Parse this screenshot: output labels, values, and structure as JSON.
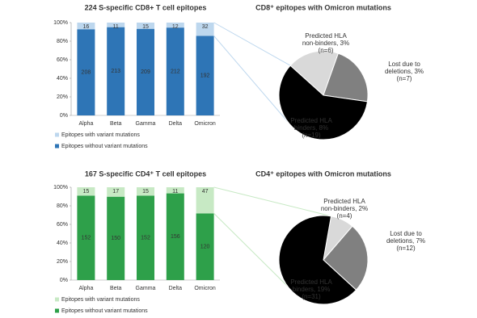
{
  "chart_data": [
    {
      "type": "bar",
      "stacked": "percent",
      "title": "224 S-specific CD8+ T cell epitopes",
      "categories": [
        "Alpha",
        "Beta",
        "Gamma",
        "Delta",
        "Omicron"
      ],
      "series": [
        {
          "name": "Epitopes without variant mutations",
          "color": "#2e75b6",
          "values": [
            208,
            213,
            209,
            212,
            192
          ]
        },
        {
          "name": "Epitopes with variant mutations",
          "color": "#bdd7ee",
          "values": [
            16,
            11,
            15,
            12,
            32
          ]
        }
      ],
      "ylim": [
        0,
        100
      ],
      "yticks": [
        {
          "value": 0,
          "label": "0%"
        },
        {
          "value": 20,
          "label": "20%"
        },
        {
          "value": 40,
          "label": "40%"
        },
        {
          "value": 60,
          "label": "60%"
        },
        {
          "value": 80,
          "label": "80%"
        },
        {
          "value": 100,
          "label": "100%"
        }
      ]
    },
    {
      "type": "pie",
      "title": "CD8⁺ epitopes with Omicron mutations",
      "categories": [
        "Predicted HLA non-binders, 3%",
        "Lost due to deletions, 3%",
        "Predicted HLA binders, 8%"
      ],
      "values": [
        6,
        7,
        19
      ],
      "value_labels": [
        "(n=6)",
        "(n=7)",
        "(n=19)"
      ],
      "colors": [
        "#d9d9d9",
        "#808080",
        "#000000"
      ],
      "connector_color": "#bdd7ee"
    },
    {
      "type": "bar",
      "stacked": "percent",
      "title": "167 S-specific CD4⁺ T cell epitopes",
      "categories": [
        "Alpha",
        "Beta",
        "Gamma",
        "Delta",
        "Omicron"
      ],
      "series": [
        {
          "name": "Epitopes without variant mutations",
          "color": "#2ea04a",
          "values": [
            152,
            150,
            152,
            156,
            120
          ]
        },
        {
          "name": "Epitopes with variant mutations",
          "color": "#c7e9c4",
          "values": [
            15,
            17,
            15,
            11,
            47
          ]
        }
      ],
      "ylim": [
        0,
        100
      ],
      "yticks": [
        {
          "value": 0,
          "label": "0%"
        },
        {
          "value": 20,
          "label": "20%"
        },
        {
          "value": 40,
          "label": "40%"
        },
        {
          "value": 60,
          "label": "60%"
        },
        {
          "value": 80,
          "label": "80%"
        },
        {
          "value": 100,
          "label": "100%"
        }
      ]
    },
    {
      "type": "pie",
      "title": "CD4⁺ epitopes with Omicron mutations",
      "categories": [
        "Predicted HLA non-binders, 2%",
        "Lost due to deletions, 7%",
        "Predicted HLA binders, 19%"
      ],
      "values": [
        4,
        12,
        31
      ],
      "value_labels": [
        "(n=4)",
        "(n=12)",
        "(n=31)"
      ],
      "colors": [
        "#d9d9d9",
        "#808080",
        "#000000"
      ],
      "connector_color": "#c7e9c4"
    }
  ]
}
